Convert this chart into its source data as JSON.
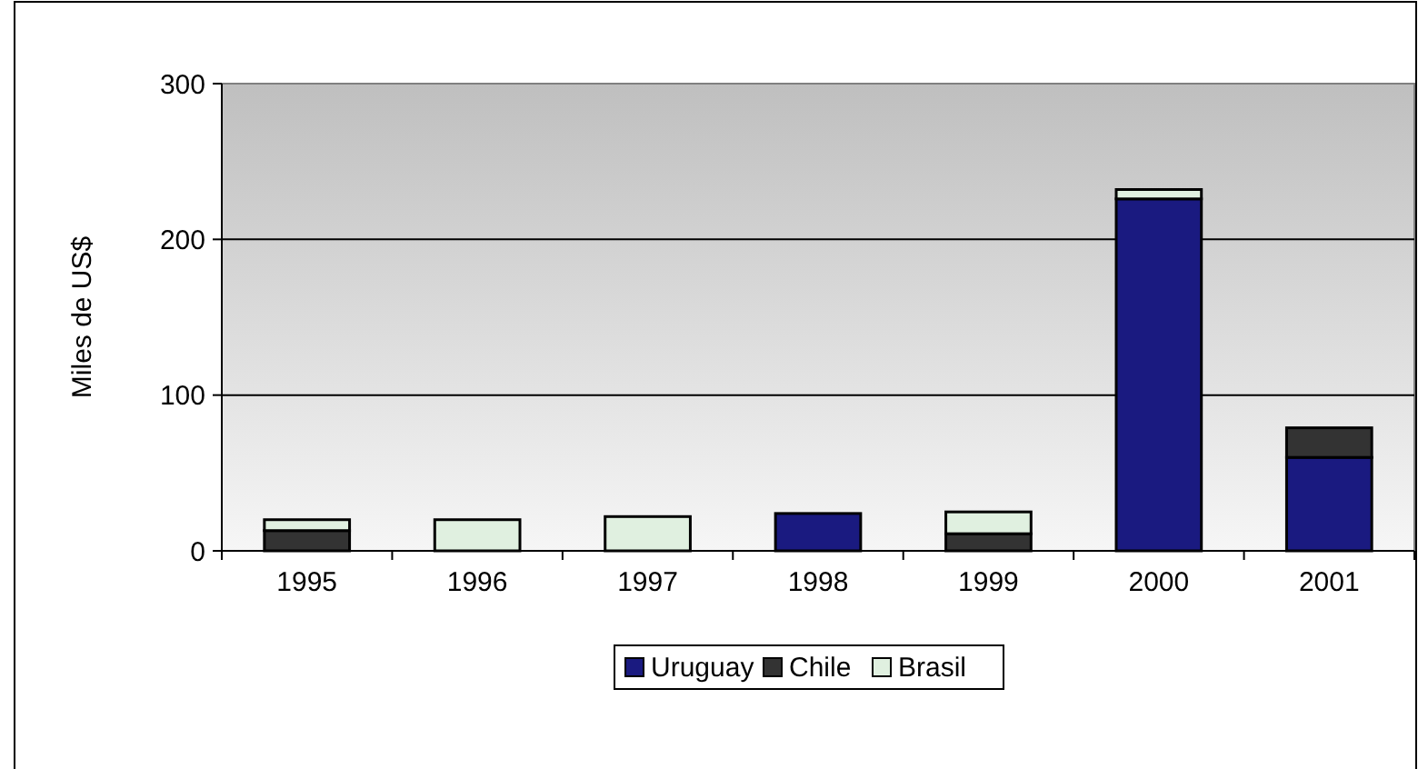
{
  "chart_data": {
    "type": "bar",
    "stacked": true,
    "ylabel": "Miles de US$",
    "categories": [
      "1995",
      "1996",
      "1997",
      "1998",
      "1999",
      "2000",
      "2001"
    ],
    "series": [
      {
        "name": "Uruguay",
        "color": "#1a1a80",
        "values": [
          0,
          0,
          0,
          24,
          0,
          226,
          60
        ]
      },
      {
        "name": "Chile",
        "color": "#333333",
        "values": [
          13,
          0,
          0,
          0,
          11,
          0,
          19
        ]
      },
      {
        "name": "Brasil",
        "color": "#e0f0e0",
        "values": [
          7,
          20,
          22,
          0,
          14,
          6,
          0
        ]
      }
    ],
    "ylim": [
      0,
      300
    ],
    "yticks": [
      0,
      100,
      200,
      300
    ],
    "grid": "y",
    "legend": "bottom"
  }
}
